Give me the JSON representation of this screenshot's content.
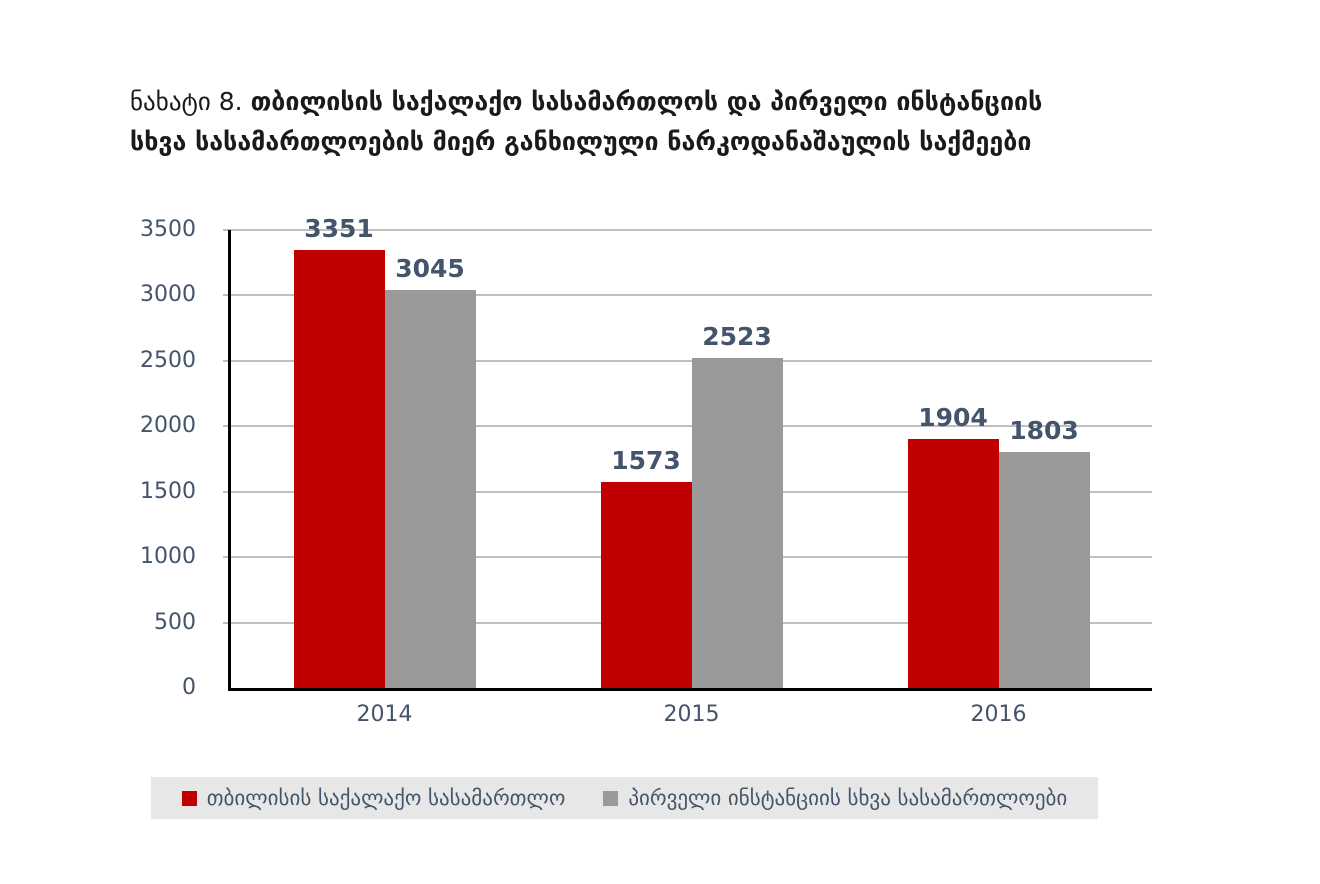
{
  "title": {
    "prefix": "ნახატი 8.",
    "line1_bold": "თბილისის საქალაქო სასამართლოს და პირველი ინსტანციის",
    "line2_bold": "სხვა სასამართლოების მიერ განხილული ნარკოდანაშაულის საქმეები"
  },
  "chart_data": {
    "type": "bar",
    "title": "ნახატი 8. თბილისის საქალაქო სასამართლოს და პირველი ინსტანციის სხვა სასამართლოების მიერ განხილული ნარკოდანაშაულის საქმეები",
    "categories": [
      "2014",
      "2015",
      "2016"
    ],
    "series": [
      {
        "name": "თბილისის საქალაქო სასამართლო",
        "slug": "tbilisi-city-court",
        "color": "#C00000",
        "values": [
          3351,
          1573,
          1904
        ]
      },
      {
        "name": "პირველი ინსტანციის სხვა სასამართლოები",
        "slug": "first-instance-other-courts",
        "color": "#9A9A9A",
        "values": [
          3045,
          2523,
          1803
        ]
      }
    ],
    "ylim": [
      0,
      3500
    ],
    "yticks": [
      0,
      500,
      1000,
      1500,
      2000,
      2500,
      3000,
      3500
    ],
    "grid": true,
    "bar_value_labels": true,
    "legend_position": "bottom"
  },
  "colors": {
    "grid": "#BFBFBF",
    "axis": "#000000",
    "tick_label": "#44546A",
    "value_label": "#44546A",
    "legend_background": "#E7E7E7",
    "title_text": "#1A1A1A",
    "background": "#FFFFFF"
  }
}
